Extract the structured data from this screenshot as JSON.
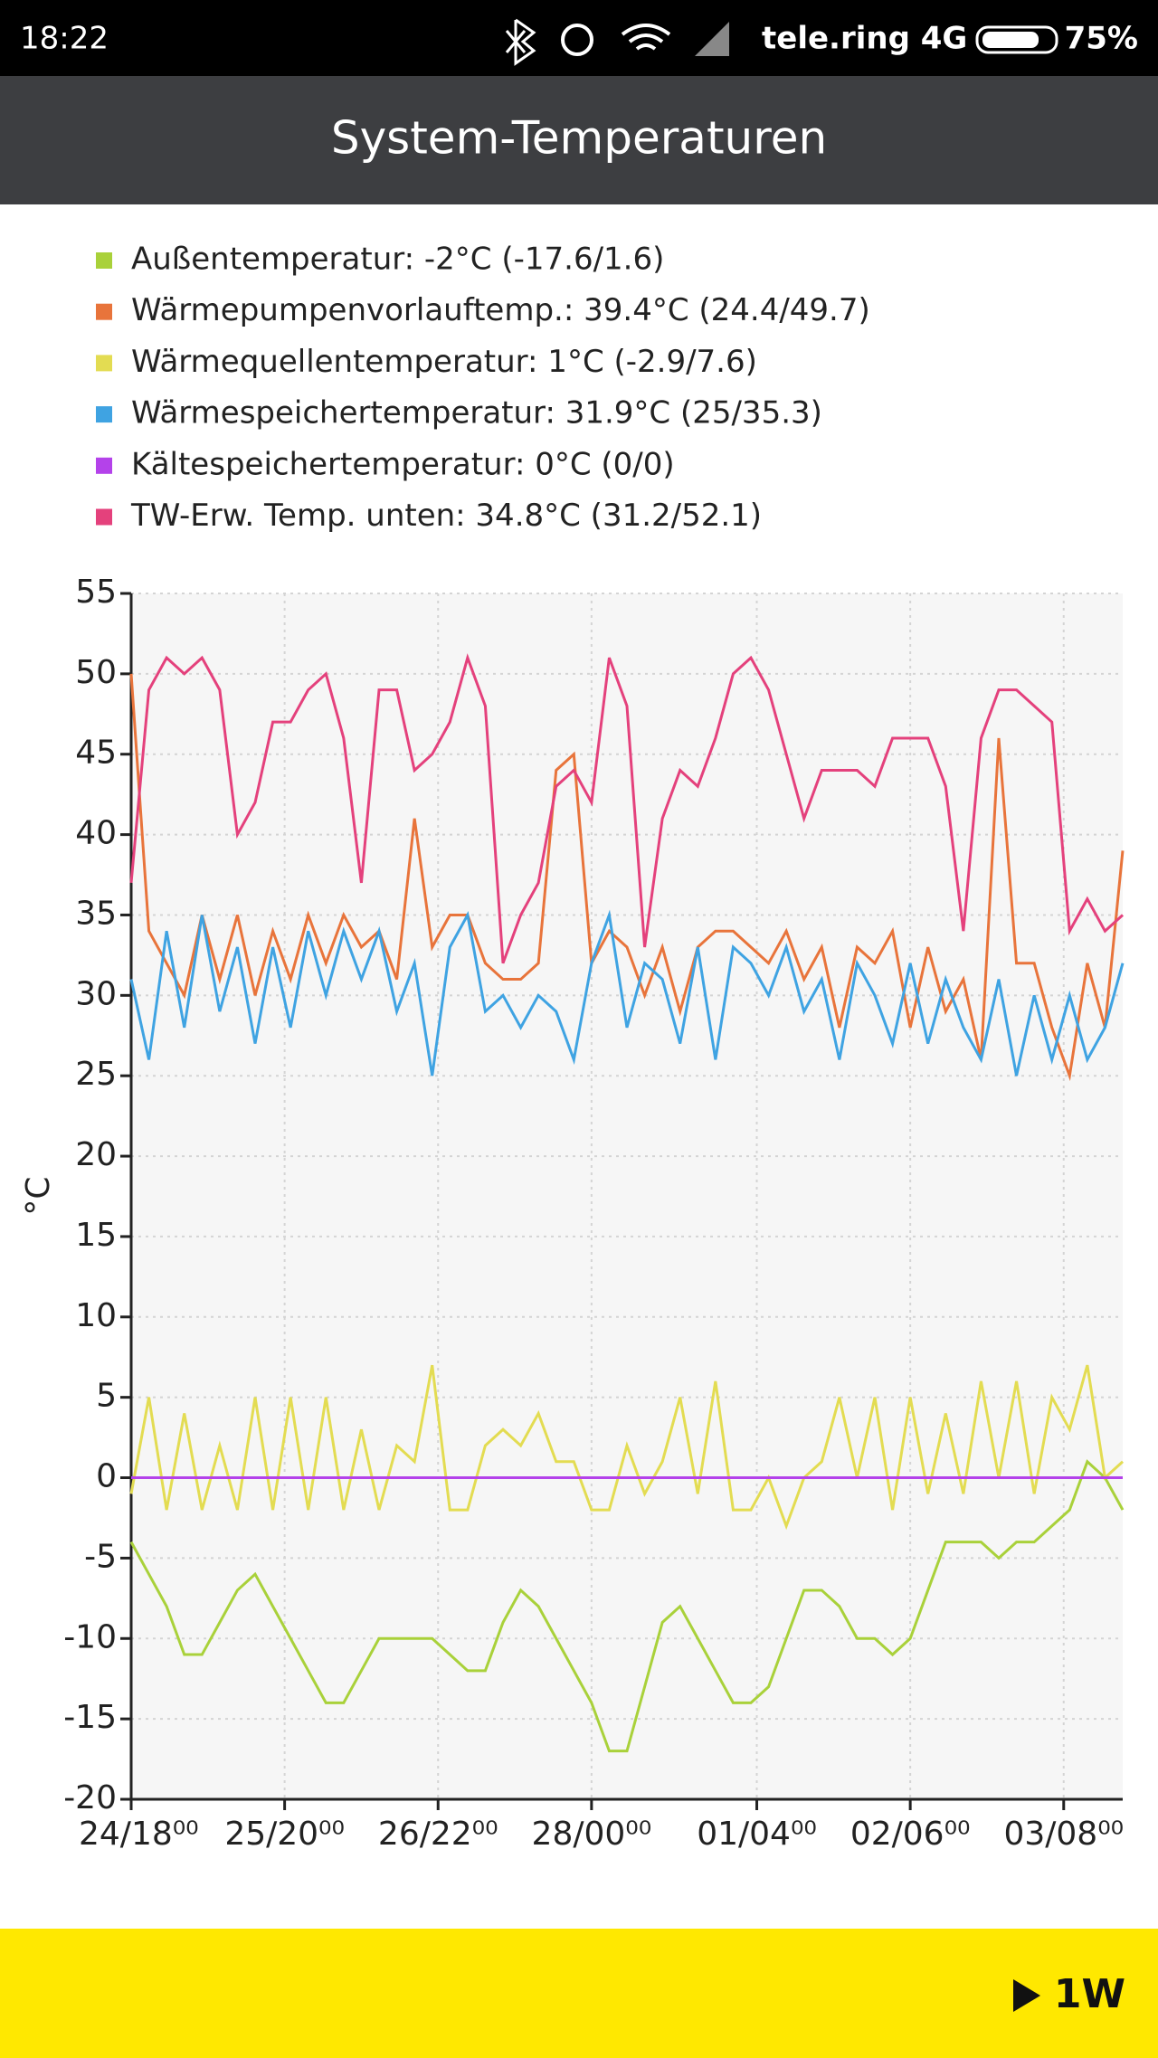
{
  "status_bar": {
    "time": "18:22",
    "carrier": "tele.ring 4G",
    "battery": "75%"
  },
  "header": {
    "title": "System-Temperaturen"
  },
  "chart_data": {
    "type": "line",
    "ylabel": "°C",
    "x": [
      0,
      3,
      6,
      9,
      12,
      15,
      18,
      21,
      24,
      27,
      30,
      33,
      36,
      39,
      42,
      45,
      48,
      51,
      54,
      57,
      60,
      63,
      66,
      69,
      72,
      75,
      78,
      81,
      84,
      87,
      90,
      93,
      96,
      99,
      102,
      105,
      108,
      111,
      114,
      117,
      120,
      123,
      126,
      129,
      132,
      135,
      138,
      141,
      144,
      147,
      150,
      153,
      156,
      159,
      162,
      165,
      168
    ],
    "xlim": [
      0,
      168
    ],
    "xticks": [
      {
        "value": 0,
        "label": "24/18⁰⁰"
      },
      {
        "value": 26,
        "label": "25/20⁰⁰"
      },
      {
        "value": 52,
        "label": "26/22⁰⁰"
      },
      {
        "value": 78,
        "label": "28/00⁰⁰"
      },
      {
        "value": 106,
        "label": "01/04⁰⁰"
      },
      {
        "value": 132,
        "label": "02/06⁰⁰"
      },
      {
        "value": 158,
        "label": "03/08⁰⁰"
      }
    ],
    "ylim": [
      -20,
      55
    ],
    "yticks": [
      -20,
      -15,
      -10,
      -5,
      0,
      5,
      10,
      15,
      20,
      25,
      30,
      35,
      40,
      45,
      50,
      55
    ],
    "grid": true,
    "series": [
      {
        "name": "Außentemperatur:  -2°C (-17.6/1.6)",
        "color": "#a9d13a",
        "values": [
          -4,
          -6,
          -8,
          -11,
          -11,
          -9,
          -7,
          -6,
          -8,
          -10,
          -12,
          -14,
          -14,
          -12,
          -10,
          -10,
          -10,
          -10,
          -11,
          -12,
          -12,
          -9,
          -7,
          -8,
          -10,
          -12,
          -14,
          -17,
          -17,
          -13,
          -9,
          -8,
          -10,
          -12,
          -14,
          -14,
          -13,
          -10,
          -7,
          -7,
          -8,
          -10,
          -10,
          -11,
          -10,
          -7,
          -4,
          -4,
          -4,
          -5,
          -4,
          -4,
          -3,
          -2,
          1,
          0,
          -2
        ]
      },
      {
        "name": "Wärmepumpenvorlauftemp.: 39.4°C (24.4/49.7)",
        "color": "#e8743b",
        "values": [
          50,
          34,
          32,
          30,
          35,
          31,
          35,
          30,
          34,
          31,
          35,
          32,
          35,
          33,
          34,
          31,
          41,
          33,
          35,
          35,
          32,
          31,
          31,
          32,
          44,
          45,
          32,
          34,
          33,
          30,
          33,
          29,
          33,
          34,
          34,
          33,
          32,
          34,
          31,
          33,
          28,
          33,
          32,
          34,
          28,
          33,
          29,
          31,
          26,
          46,
          32,
          32,
          28,
          25,
          32,
          28,
          39
        ]
      },
      {
        "name": "Wärmequellentemperatur:  1°C (-2.9/7.6)",
        "color": "#e3dc52",
        "values": [
          -1,
          5,
          -2,
          4,
          -2,
          2,
          -2,
          5,
          -2,
          5,
          -2,
          5,
          -2,
          3,
          -2,
          2,
          1,
          7,
          -2,
          -2,
          2,
          3,
          2,
          4,
          1,
          1,
          -2,
          -2,
          2,
          -1,
          1,
          5,
          -1,
          6,
          -2,
          -2,
          0,
          -3,
          0,
          1,
          5,
          0,
          5,
          -2,
          5,
          -1,
          4,
          -1,
          6,
          0,
          6,
          -1,
          5,
          3,
          7,
          0,
          1
        ]
      },
      {
        "name": "Wärmespeichertemperatur:  31.9°C (25/35.3)",
        "color": "#3fa3e2",
        "values": [
          31,
          26,
          34,
          28,
          35,
          29,
          33,
          27,
          33,
          28,
          34,
          30,
          34,
          31,
          34,
          29,
          32,
          25,
          33,
          35,
          29,
          30,
          28,
          30,
          29,
          26,
          32,
          35,
          28,
          32,
          31,
          27,
          33,
          26,
          33,
          32,
          30,
          33,
          29,
          31,
          26,
          32,
          30,
          27,
          32,
          27,
          31,
          28,
          26,
          31,
          25,
          30,
          26,
          30,
          26,
          28,
          32
        ]
      },
      {
        "name": "Kältespeichertemperatur:  0°C (0/0)",
        "color": "#b442ea",
        "values": [
          0,
          0,
          0,
          0,
          0,
          0,
          0,
          0,
          0,
          0,
          0,
          0,
          0,
          0,
          0,
          0,
          0,
          0,
          0,
          0,
          0,
          0,
          0,
          0,
          0,
          0,
          0,
          0,
          0,
          0,
          0,
          0,
          0,
          0,
          0,
          0,
          0,
          0,
          0,
          0,
          0,
          0,
          0,
          0,
          0,
          0,
          0,
          0,
          0,
          0,
          0,
          0,
          0,
          0,
          0,
          0,
          0
        ]
      },
      {
        "name": "TW-Erw. Temp. unten:  34.8°C (31.2/52.1)",
        "color": "#e4417c",
        "values": [
          37,
          49,
          51,
          50,
          51,
          49,
          40,
          42,
          47,
          47,
          49,
          50,
          46,
          37,
          49,
          49,
          44,
          45,
          47,
          51,
          48,
          32,
          35,
          37,
          43,
          44,
          42,
          51,
          48,
          33,
          41,
          44,
          43,
          46,
          50,
          51,
          49,
          45,
          41,
          44,
          44,
          44,
          43,
          46,
          46,
          46,
          43,
          34,
          46,
          49,
          49,
          48,
          47,
          34,
          36,
          34,
          35
        ]
      }
    ]
  },
  "footer": {
    "range": "1W"
  }
}
